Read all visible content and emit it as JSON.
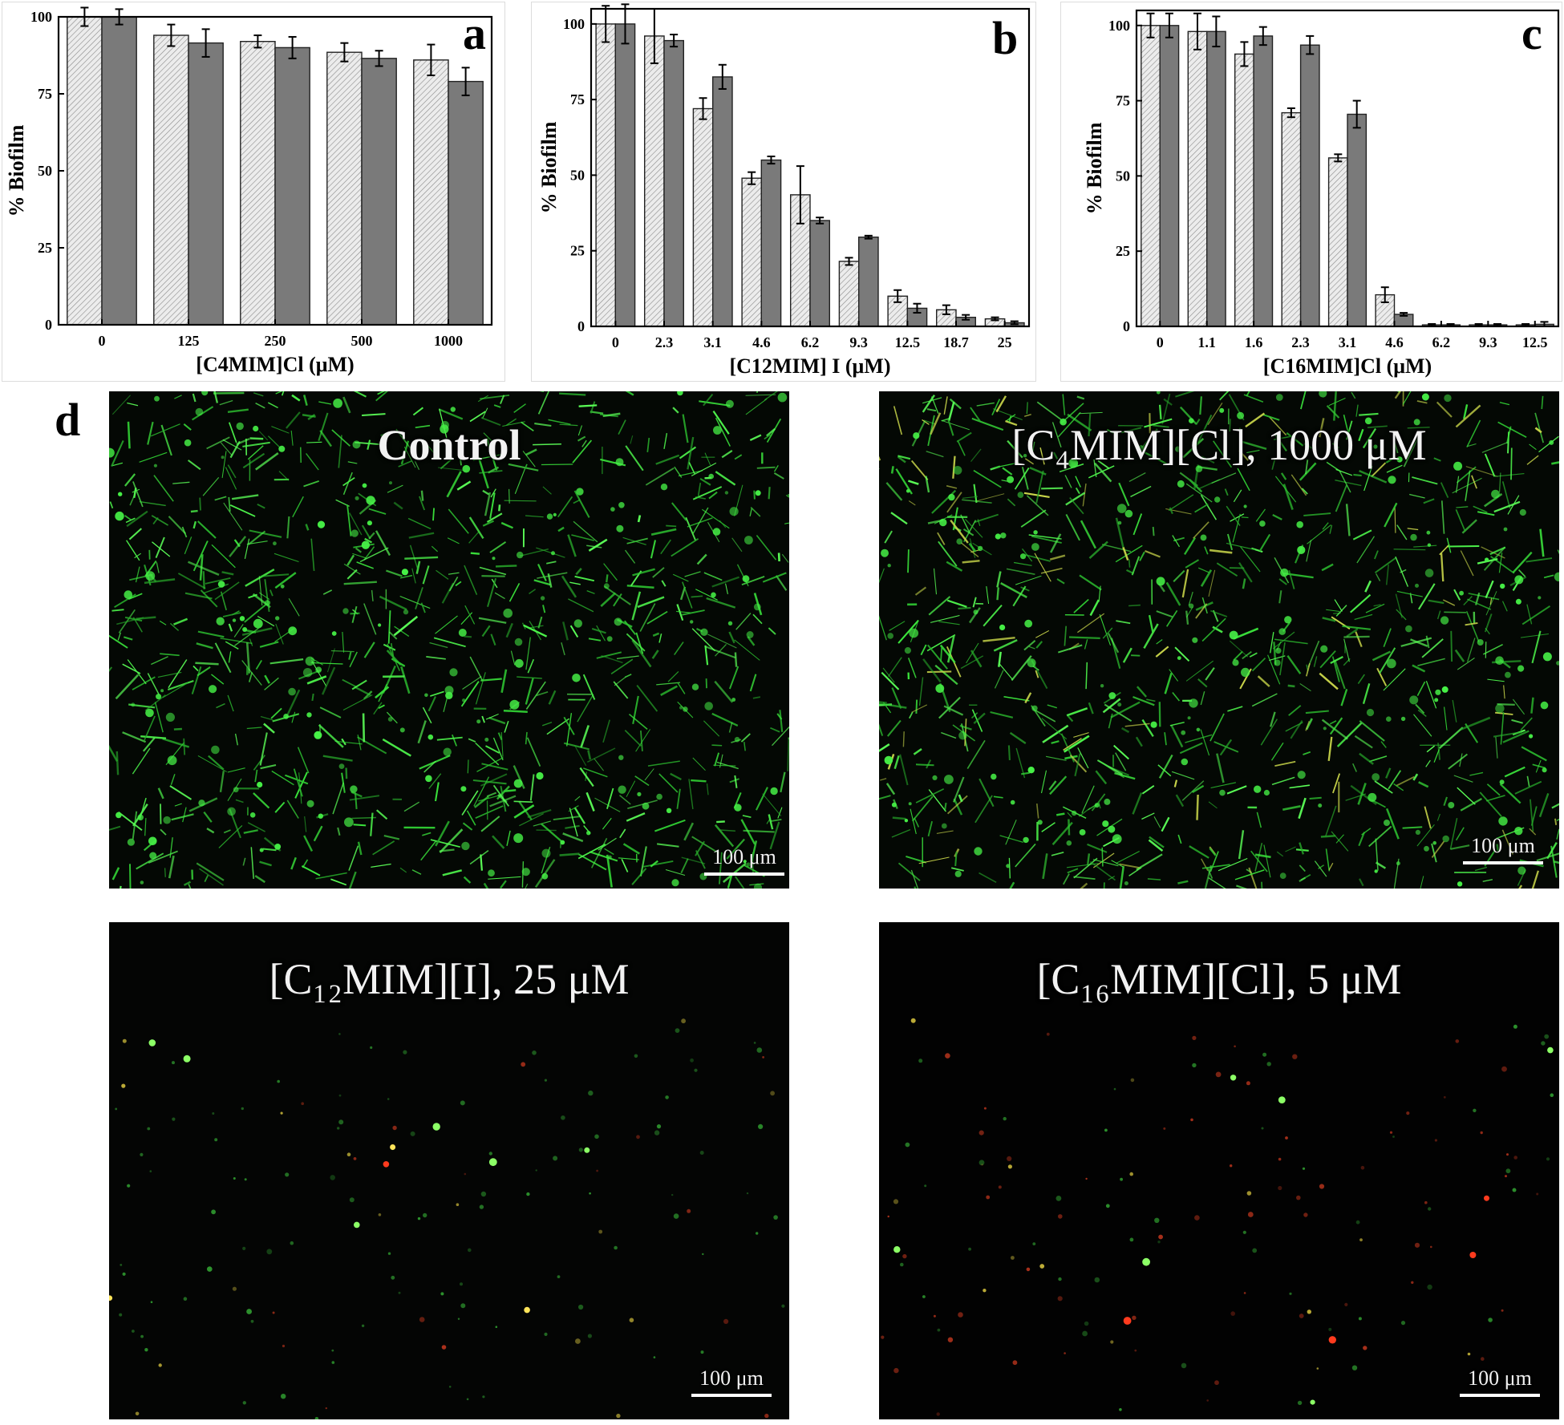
{
  "chart_data": [
    {
      "panel": "a",
      "type": "bar",
      "ylabel": "% Biofilm",
      "xlabel": "[C4MIM]Cl (μM)",
      "categories": [
        "0",
        "125",
        "250",
        "500",
        "1000"
      ],
      "ylim": [
        0,
        100
      ],
      "yticks": [
        0,
        25,
        50,
        75,
        100
      ],
      "series": [
        {
          "style": "light-hatched",
          "values": [
            100,
            94,
            92,
            88.5,
            86
          ],
          "errors": [
            3,
            3.5,
            2,
            3,
            5
          ]
        },
        {
          "style": "dark",
          "values": [
            100,
            91.5,
            90,
            86.5,
            79
          ],
          "errors": [
            2.5,
            4.5,
            3.5,
            2.5,
            4.5
          ]
        }
      ]
    },
    {
      "panel": "b",
      "type": "bar",
      "ylabel": "% Biofilm",
      "xlabel": "[C12MIM] I (μM)",
      "categories": [
        "0",
        "2.3",
        "3.1",
        "4.6",
        "6.2",
        "9.3",
        "12.5",
        "18.7",
        "25"
      ],
      "ylim": [
        0,
        105
      ],
      "yticks": [
        0,
        25,
        50,
        75,
        100
      ],
      "series": [
        {
          "style": "light-hatched",
          "values": [
            100,
            96,
            72,
            49,
            43.5,
            21.5,
            10,
            5.5,
            2.5
          ],
          "errors": [
            6,
            9,
            3.5,
            2,
            9.5,
            1.2,
            2,
            1.5,
            0.5
          ]
        },
        {
          "style": "dark",
          "values": [
            100,
            94.5,
            82.5,
            55,
            35,
            29.5,
            6,
            3,
            1.2
          ],
          "errors": [
            6.5,
            2,
            4,
            1.2,
            1,
            0.5,
            1.5,
            0.8,
            0.5
          ]
        }
      ]
    },
    {
      "panel": "c",
      "type": "bar",
      "ylabel": "% Biofilm",
      "xlabel": "[C16MIM]Cl (μM)",
      "categories": [
        "0",
        "1.1",
        "1.6",
        "2.3",
        "3.1",
        "4.6",
        "6.2",
        "9.3",
        "12.5"
      ],
      "ylim": [
        0,
        105
      ],
      "yticks": [
        0,
        25,
        50,
        75,
        100
      ],
      "series": [
        {
          "style": "light-hatched",
          "values": [
            100,
            98,
            90.5,
            71,
            56,
            10.5,
            0.5,
            0.5,
            0.5
          ],
          "errors": [
            4,
            6,
            4,
            1.5,
            1.2,
            2.5,
            0.3,
            0.3,
            0.3
          ]
        },
        {
          "style": "dark",
          "values": [
            100,
            98,
            96.5,
            93.5,
            70.5,
            4,
            0.5,
            0.5,
            0.7
          ],
          "errors": [
            4,
            5,
            3,
            3,
            4.5,
            0.5,
            0.3,
            0.3,
            0.8
          ]
        }
      ]
    }
  ],
  "panel_d": {
    "letter": "d",
    "images": [
      {
        "label": "Control",
        "scale_label": "100 μm",
        "style": "dense-green"
      },
      {
        "label": "[C₄MIM][Cl], 1000 μM",
        "scale_label": "100 μm",
        "style": "dense-green"
      },
      {
        "label": "[C₁₂MIM][I], 25 μM",
        "scale_label": "100 μm",
        "style": "sparse"
      },
      {
        "label": "[C₁₆MIM][Cl], 5 μM",
        "scale_label": "100 μm",
        "style": "sparse"
      }
    ]
  },
  "colors": {
    "bar_light": "#e8e8e8",
    "bar_dark": "#7a7a7a",
    "micro_background": "#030603",
    "fluorescence_green": "#39e03a",
    "fluorescence_red": "#ff3b1e",
    "fluorescence_yellow": "#e8e64a"
  }
}
